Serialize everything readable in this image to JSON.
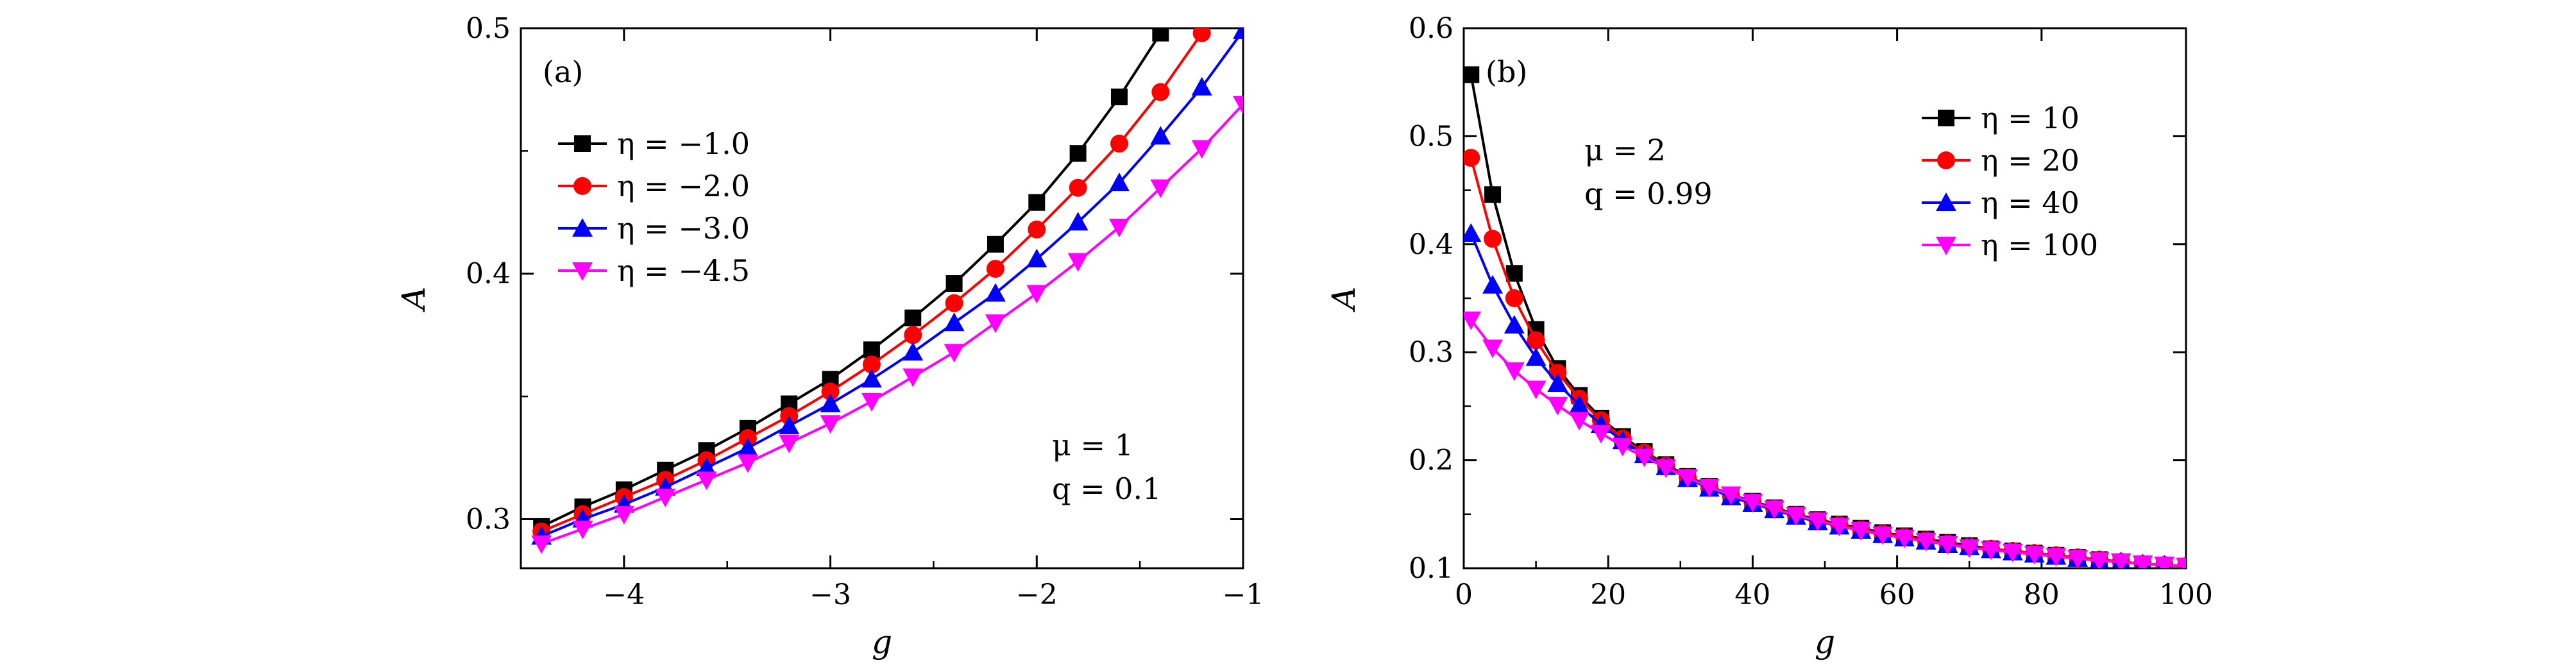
{
  "colors": {
    "black": "#000000",
    "red": "#ff0000",
    "blue": "#0000ff",
    "magenta": "#ff00ff"
  },
  "chart_data": [
    {
      "type": "line",
      "panel_label": "(a)",
      "xlabel": "g",
      "ylabel": "A",
      "xlim": [
        -4.5,
        -1
      ],
      "ylim": [
        0.28,
        0.5
      ],
      "xticks": [
        -4,
        -3,
        -2,
        -1
      ],
      "xtick_labels": [
        "−4",
        "−3",
        "−2",
        "−1"
      ],
      "yticks": [
        0.3,
        0.4,
        0.5
      ],
      "ytick_labels": [
        "0.3",
        "0.4",
        "0.5"
      ],
      "annotations": [
        "μ = 1",
        "q = 0.1"
      ],
      "legend_position": "top-left",
      "series": [
        {
          "name": "η = −1.0",
          "color": "#000000",
          "marker": "square",
          "x": [
            -4.4,
            -4.2,
            -4.0,
            -3.8,
            -3.6,
            -3.4,
            -3.2,
            -3.0,
            -2.8,
            -2.6,
            -2.4,
            -2.2,
            -2.0,
            -1.8,
            -1.6,
            -1.4
          ],
          "values": [
            0.297,
            0.305,
            0.312,
            0.32,
            0.328,
            0.337,
            0.347,
            0.357,
            0.369,
            0.382,
            0.396,
            0.412,
            0.429,
            0.449,
            0.472,
            0.498
          ]
        },
        {
          "name": "η = −2.0",
          "color": "#ff0000",
          "marker": "circle",
          "x": [
            -4.4,
            -4.2,
            -4.0,
            -3.8,
            -3.6,
            -3.4,
            -3.2,
            -3.0,
            -2.8,
            -2.6,
            -2.4,
            -2.2,
            -2.0,
            -1.8,
            -1.6,
            -1.4,
            -1.2
          ],
          "values": [
            0.295,
            0.302,
            0.309,
            0.316,
            0.324,
            0.333,
            0.342,
            0.352,
            0.363,
            0.375,
            0.388,
            0.402,
            0.418,
            0.435,
            0.453,
            0.474,
            0.498
          ]
        },
        {
          "name": "η = −3.0",
          "color": "#0000ff",
          "marker": "triangle-up",
          "x": [
            -4.4,
            -4.2,
            -4.0,
            -3.8,
            -3.6,
            -3.4,
            -3.2,
            -3.0,
            -2.8,
            -2.6,
            -2.4,
            -2.2,
            -2.0,
            -1.8,
            -1.6,
            -1.4,
            -1.2,
            -1.0
          ],
          "values": [
            0.293,
            0.3,
            0.306,
            0.313,
            0.321,
            0.329,
            0.338,
            0.347,
            0.357,
            0.368,
            0.38,
            0.392,
            0.406,
            0.421,
            0.437,
            0.456,
            0.476,
            0.499
          ]
        },
        {
          "name": "η = −4.5",
          "color": "#ff00ff",
          "marker": "triangle-down",
          "x": [
            -4.4,
            -4.2,
            -4.0,
            -3.8,
            -3.6,
            -3.4,
            -3.2,
            -3.0,
            -2.8,
            -2.6,
            -2.4,
            -2.2,
            -2.0,
            -1.8,
            -1.6,
            -1.4,
            -1.2,
            -1.0
          ],
          "values": [
            0.29,
            0.296,
            0.302,
            0.309,
            0.316,
            0.323,
            0.331,
            0.339,
            0.348,
            0.358,
            0.368,
            0.38,
            0.392,
            0.405,
            0.419,
            0.435,
            0.451,
            0.469
          ]
        }
      ]
    },
    {
      "type": "line",
      "panel_label": "(b)",
      "xlabel": "g",
      "ylabel": "A",
      "xlim": [
        0,
        100
      ],
      "ylim": [
        0.1,
        0.6
      ],
      "xticks": [
        0,
        20,
        40,
        60,
        80,
        100
      ],
      "xtick_labels": [
        "0",
        "20",
        "40",
        "60",
        "80",
        "100"
      ],
      "yticks": [
        0.1,
        0.2,
        0.3,
        0.4,
        0.5,
        0.6
      ],
      "ytick_labels": [
        "0.1",
        "0.2",
        "0.3",
        "0.4",
        "0.5",
        "0.6"
      ],
      "annotations": [
        "μ = 2",
        "q = 0.99"
      ],
      "legend_position": "top-right",
      "series": [
        {
          "name": "η = 10",
          "color": "#000000",
          "marker": "square",
          "x": [
            1,
            4,
            7,
            10,
            13,
            16,
            19,
            22,
            25,
            28,
            31,
            34,
            37,
            40,
            43,
            46,
            49,
            52,
            55,
            58,
            61,
            64,
            67,
            70,
            73,
            76,
            79,
            82,
            85,
            88,
            91,
            94,
            97,
            100
          ],
          "values": [
            0.557,
            0.446,
            0.373,
            0.321,
            0.285,
            0.26,
            0.239,
            0.222,
            0.208,
            0.196,
            0.185,
            0.176,
            0.168,
            0.162,
            0.156,
            0.15,
            0.145,
            0.141,
            0.137,
            0.133,
            0.13,
            0.127,
            0.124,
            0.121,
            0.118,
            0.116,
            0.114,
            0.112,
            0.11,
            0.108,
            0.106,
            0.104,
            0.103,
            0.102
          ]
        },
        {
          "name": "η = 20",
          "color": "#ff0000",
          "marker": "circle",
          "x": [
            1,
            4,
            7,
            10,
            13,
            16,
            19,
            22,
            25,
            28,
            31,
            34,
            37,
            40,
            43,
            46,
            49,
            52,
            55,
            58,
            61,
            64,
            67,
            70,
            73,
            76,
            79,
            82,
            85,
            88,
            91,
            94,
            97,
            100
          ],
          "values": [
            0.48,
            0.405,
            0.35,
            0.311,
            0.281,
            0.257,
            0.237,
            0.22,
            0.207,
            0.195,
            0.184,
            0.175,
            0.167,
            0.161,
            0.155,
            0.149,
            0.144,
            0.14,
            0.136,
            0.132,
            0.129,
            0.126,
            0.123,
            0.12,
            0.118,
            0.116,
            0.114,
            0.112,
            0.11,
            0.108,
            0.106,
            0.104,
            0.103,
            0.102
          ]
        },
        {
          "name": "η = 40",
          "color": "#0000ff",
          "marker": "triangle-up",
          "x": [
            1,
            4,
            7,
            10,
            13,
            16,
            19,
            22,
            25,
            28,
            31,
            34,
            37,
            40,
            43,
            46,
            49,
            52,
            55,
            58,
            61,
            64,
            67,
            70,
            73,
            76,
            79,
            82,
            85,
            88,
            91,
            94,
            97,
            100
          ],
          "values": [
            0.41,
            0.362,
            0.325,
            0.295,
            0.271,
            0.251,
            0.233,
            0.218,
            0.205,
            0.194,
            0.183,
            0.174,
            0.166,
            0.16,
            0.154,
            0.148,
            0.143,
            0.139,
            0.135,
            0.131,
            0.128,
            0.125,
            0.122,
            0.12,
            0.117,
            0.115,
            0.113,
            0.111,
            0.109,
            0.107,
            0.106,
            0.104,
            0.103,
            0.102
          ]
        },
        {
          "name": "η = 100",
          "color": "#ff00ff",
          "marker": "triangle-down",
          "x": [
            1,
            4,
            7,
            10,
            13,
            16,
            19,
            22,
            25,
            28,
            31,
            34,
            37,
            40,
            43,
            46,
            49,
            52,
            55,
            58,
            61,
            64,
            67,
            70,
            73,
            76,
            79,
            82,
            85,
            88,
            91,
            94,
            97,
            100
          ],
          "values": [
            0.33,
            0.304,
            0.283,
            0.266,
            0.251,
            0.237,
            0.225,
            0.213,
            0.203,
            0.193,
            0.184,
            0.175,
            0.168,
            0.161,
            0.155,
            0.149,
            0.144,
            0.139,
            0.135,
            0.131,
            0.128,
            0.125,
            0.122,
            0.119,
            0.117,
            0.115,
            0.113,
            0.111,
            0.109,
            0.107,
            0.106,
            0.104,
            0.103,
            0.102
          ]
        }
      ]
    }
  ]
}
